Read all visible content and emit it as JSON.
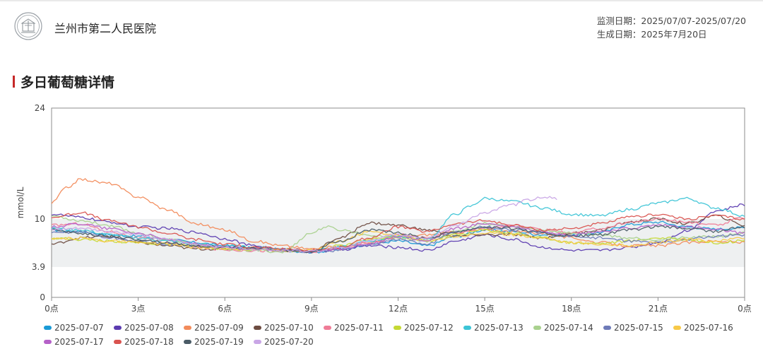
{
  "hospital": {
    "name": "兰州市第二人民医院"
  },
  "meta": {
    "monitor_label": "监测日期：",
    "monitor_range": "2025/07/07-2025/07/20",
    "generate_label": "生成日期：",
    "generate_date": "2025年7月20日"
  },
  "section": {
    "title": "多日葡萄糖详情"
  },
  "chart_data": {
    "type": "line",
    "title": "",
    "xlabel": "",
    "ylabel": "mmol/L",
    "x_ticks": [
      "0点",
      "3点",
      "6点",
      "9点",
      "12点",
      "15点",
      "18点",
      "21点",
      "0点"
    ],
    "x_tick_hours": [
      0,
      3,
      6,
      9,
      12,
      15,
      18,
      21,
      24
    ],
    "y_ticks": [
      0,
      3.9,
      10,
      24
    ],
    "y_ticks_labels": [
      "0",
      "3.9",
      "10",
      "24"
    ],
    "xlim": [
      0,
      24
    ],
    "y_scale": "piecewise: 0-3.9, 3.9-10, 10-24",
    "target_range": [
      3.9,
      10
    ],
    "legend_position": "bottom",
    "series": [
      {
        "name": "2025-07-07",
        "color": "#1a9ad6",
        "x": [
          0,
          1,
          2,
          3,
          4,
          5,
          6,
          7,
          8,
          9,
          10,
          11,
          12,
          13,
          14,
          15,
          16,
          17,
          18,
          19,
          20,
          21,
          22,
          23,
          24
        ],
        "y": [
          8.6,
          8.4,
          8.0,
          7.8,
          7.4,
          7.0,
          6.6,
          6.3,
          6.0,
          5.8,
          6.1,
          6.8,
          7.2,
          6.6,
          7.8,
          8.6,
          8.4,
          8.0,
          7.9,
          8.3,
          9.3,
          9.6,
          9.0,
          8.7,
          8.9
        ]
      },
      {
        "name": "2025-07-08",
        "color": "#5b3bb0",
        "x": [
          0,
          1,
          2,
          3,
          4,
          5,
          6,
          7,
          8,
          9,
          10,
          11,
          12,
          13,
          14,
          15,
          16,
          17,
          18,
          19,
          20,
          21,
          22,
          23,
          24
        ],
        "y": [
          10.6,
          10.2,
          9.6,
          9.0,
          8.8,
          8.3,
          7.5,
          6.6,
          6.1,
          5.9,
          6.1,
          6.6,
          6.4,
          6.0,
          7.2,
          8.0,
          7.4,
          6.4,
          6.0,
          6.0,
          6.4,
          7.0,
          8.5,
          11.0,
          11.8
        ]
      },
      {
        "name": "2025-07-09",
        "color": "#f28b5b",
        "x": [
          0,
          0.5,
          1,
          2,
          3,
          4,
          5,
          6,
          7,
          8,
          9,
          10,
          11,
          12,
          13,
          14,
          15,
          16,
          17,
          18,
          19,
          20,
          21,
          22,
          23,
          24
        ],
        "y": [
          12.0,
          13.9,
          15.0,
          14.5,
          12.8,
          11.2,
          9.4,
          8.6,
          7.2,
          6.6,
          6.2,
          6.5,
          7.0,
          7.6,
          8.0,
          8.3,
          8.6,
          8.4,
          8.2,
          7.6,
          7.0,
          6.6,
          6.6,
          7.0,
          7.2,
          7.0
        ]
      },
      {
        "name": "2025-07-10",
        "color": "#6d4c41",
        "x": [
          0,
          1,
          2,
          3,
          4,
          5,
          6,
          7,
          8,
          9,
          10,
          11,
          12,
          13,
          14,
          15,
          16,
          17,
          18,
          19,
          20,
          21,
          22,
          23,
          24
        ],
        "y": [
          6.8,
          7.6,
          7.8,
          7.0,
          6.6,
          6.2,
          6.2,
          6.4,
          6.0,
          5.9,
          7.6,
          9.5,
          9.2,
          8.6,
          7.8,
          8.0,
          8.0,
          7.6,
          8.2,
          8.6,
          9.6,
          10.0,
          9.4,
          10.4,
          9.2
        ]
      },
      {
        "name": "2025-07-11",
        "color": "#ef7c97",
        "x": [
          0,
          1,
          2,
          3,
          4,
          5,
          6,
          7,
          8,
          9,
          10,
          11,
          12,
          13,
          14,
          15,
          16,
          17,
          18,
          19,
          20,
          21,
          22,
          23,
          24
        ],
        "y": [
          9.2,
          9.4,
          8.4,
          7.6,
          7.0,
          6.4,
          6.1,
          6.0,
          5.9,
          5.8,
          6.2,
          7.0,
          8.0,
          7.6,
          8.4,
          8.8,
          9.2,
          8.6,
          8.2,
          8.8,
          9.6,
          10.0,
          9.6,
          9.2,
          10.2
        ]
      },
      {
        "name": "2025-07-12",
        "color": "#c5d934",
        "x": [
          0,
          1,
          2,
          3,
          4,
          5,
          6,
          7,
          8,
          9,
          10,
          11,
          12,
          13,
          14,
          15,
          16,
          17,
          18,
          19,
          20,
          21,
          22,
          23,
          24
        ],
        "y": [
          7.6,
          7.4,
          7.2,
          7.0,
          6.8,
          6.5,
          6.2,
          6.1,
          6.0,
          5.9,
          6.6,
          7.4,
          7.8,
          7.2,
          8.0,
          8.6,
          8.2,
          7.6,
          7.0,
          6.9,
          7.2,
          7.6,
          7.4,
          7.0,
          7.2
        ]
      },
      {
        "name": "2025-07-13",
        "color": "#3cc4d6",
        "x": [
          0,
          1,
          2,
          3,
          4,
          5,
          6,
          7,
          8,
          9,
          10,
          11,
          12,
          13,
          14,
          14.5,
          15,
          16,
          17,
          18,
          19,
          20,
          21,
          22,
          23,
          24
        ],
        "y": [
          8.8,
          8.6,
          8.0,
          7.6,
          7.2,
          6.8,
          6.6,
          6.4,
          6.2,
          6.0,
          6.4,
          7.2,
          7.8,
          7.4,
          10.6,
          11.6,
          12.6,
          12.2,
          11.4,
          10.6,
          10.4,
          11.2,
          12.0,
          12.6,
          11.4,
          10.4
        ]
      },
      {
        "name": "2025-07-14",
        "color": "#a9d18e",
        "x": [
          0,
          1,
          2,
          3,
          4,
          5,
          6,
          7,
          8,
          9,
          9.5,
          10,
          11,
          12,
          13,
          14,
          15,
          16,
          17,
          18,
          19,
          20,
          21,
          22,
          23,
          24
        ],
        "y": [
          10.4,
          9.8,
          9.2,
          8.2,
          7.4,
          6.8,
          6.2,
          6.0,
          5.8,
          8.2,
          9.0,
          8.6,
          8.0,
          7.6,
          7.2,
          8.4,
          9.4,
          9.0,
          8.6,
          8.2,
          8.0,
          7.6,
          7.4,
          7.6,
          7.8,
          8.2
        ]
      },
      {
        "name": "2025-07-15",
        "color": "#6e7bb8",
        "x": [
          0,
          1,
          2,
          3,
          4,
          5,
          6,
          7,
          8,
          9,
          10,
          11,
          12,
          13,
          14,
          15,
          16,
          17,
          18,
          19,
          20,
          21,
          22,
          23,
          24
        ],
        "y": [
          8.2,
          8.4,
          7.6,
          7.2,
          6.8,
          6.6,
          6.4,
          6.2,
          6.0,
          5.8,
          6.0,
          6.8,
          7.4,
          6.8,
          8.4,
          9.0,
          8.6,
          8.2,
          7.8,
          7.6,
          7.2,
          7.0,
          7.4,
          7.8,
          8.0
        ]
      },
      {
        "name": "2025-07-16",
        "color": "#f7c948",
        "x": [
          0,
          1,
          2,
          3,
          4,
          5,
          6,
          7,
          8,
          9,
          10,
          11,
          12,
          13,
          14,
          15,
          16,
          17,
          18,
          19,
          20,
          21,
          22,
          23,
          24
        ],
        "y": [
          7.4,
          7.6,
          7.2,
          7.0,
          6.8,
          6.4,
          6.2,
          6.2,
          6.1,
          6.0,
          7.2,
          8.4,
          8.0,
          7.2,
          7.8,
          8.2,
          8.0,
          7.6,
          7.0,
          6.8,
          6.6,
          7.0,
          7.4,
          7.2,
          7.6
        ]
      },
      {
        "name": "2025-07-17",
        "color": "#b561c8",
        "x": [
          0,
          1,
          2,
          3,
          4,
          5,
          6,
          7,
          8,
          9,
          10,
          11,
          12,
          13,
          14,
          15,
          16,
          17,
          18,
          19,
          20,
          21,
          22,
          23,
          24
        ],
        "y": [
          9.0,
          9.4,
          8.8,
          8.2,
          7.4,
          6.8,
          6.4,
          6.2,
          6.0,
          5.9,
          6.2,
          6.8,
          7.8,
          7.2,
          8.8,
          9.4,
          9.0,
          8.4,
          8.0,
          8.4,
          8.8,
          9.2,
          9.0,
          8.6,
          8.2
        ]
      },
      {
        "name": "2025-07-18",
        "color": "#d9534f",
        "x": [
          0,
          1,
          2,
          3,
          4,
          5,
          6,
          7,
          8,
          9,
          10,
          11,
          12,
          13,
          14,
          15,
          16,
          17,
          18,
          19,
          20,
          21,
          22,
          23,
          24
        ],
        "y": [
          10.2,
          10.8,
          9.8,
          9.0,
          8.2,
          7.4,
          6.8,
          6.4,
          6.2,
          6.0,
          6.4,
          7.6,
          9.0,
          8.4,
          9.4,
          9.8,
          9.2,
          8.6,
          8.8,
          9.4,
          10.2,
          10.6,
          10.0,
          10.4,
          10.0
        ]
      },
      {
        "name": "2025-07-19",
        "color": "#4a5b66",
        "x": [
          0,
          1,
          2,
          3,
          4,
          5,
          6,
          7,
          8,
          9,
          10,
          11,
          12,
          13,
          14,
          15,
          16,
          17,
          18,
          19,
          20,
          21,
          22,
          23,
          24
        ],
        "y": [
          8.6,
          8.2,
          7.8,
          7.4,
          7.0,
          6.6,
          6.4,
          6.2,
          6.0,
          5.9,
          7.2,
          8.6,
          8.2,
          7.6,
          8.4,
          9.0,
          8.8,
          8.2,
          7.8,
          8.0,
          8.6,
          9.0,
          8.8,
          8.4,
          9.0
        ]
      },
      {
        "name": "2025-07-20",
        "color": "#c9a6e6",
        "x": [
          0,
          1,
          2,
          3,
          4,
          5,
          6,
          7,
          8,
          9,
          10,
          11,
          12,
          13,
          14,
          15,
          16,
          16.5,
          17,
          17.5
        ],
        "y": [
          8.6,
          8.8,
          8.4,
          8.0,
          7.4,
          6.8,
          6.4,
          6.2,
          6.0,
          5.9,
          6.4,
          7.2,
          8.0,
          7.6,
          9.2,
          10.8,
          11.8,
          12.4,
          12.8,
          12.6
        ]
      }
    ]
  }
}
